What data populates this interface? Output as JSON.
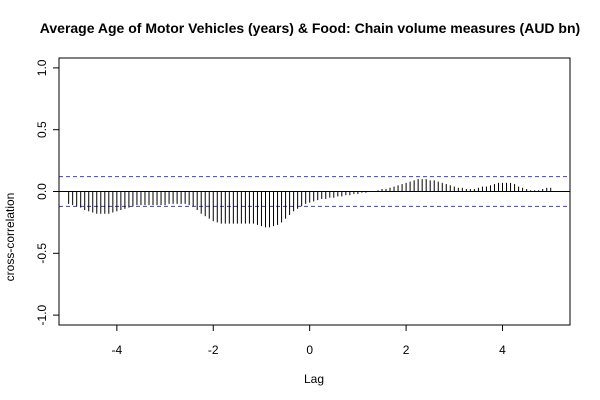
{
  "chart_data": {
    "type": "bar",
    "title": "Average Age of Motor Vehicles (years) & Food: Chain volume measures (AUD bn)",
    "xlabel": "Lag",
    "ylabel": "cross-correlation",
    "xlim": [
      -5.2,
      5.4
    ],
    "ylim": [
      -1.08,
      1.08
    ],
    "x_ticks": [
      -4,
      -2,
      0,
      2,
      4
    ],
    "x_tick_labels": [
      "-4",
      "-2",
      "0",
      "2",
      "4"
    ],
    "y_ticks": [
      -1.0,
      -0.5,
      0.0,
      0.5,
      1.0
    ],
    "y_tick_labels": [
      "-1.0",
      "-0.5",
      "0.0",
      "0.5",
      "1.0"
    ],
    "confidence_bound": 0.12,
    "confidence_color": "#4040d0",
    "bar_color": "#000000",
    "lag_step": 0.0833,
    "lags": [
      -5.0,
      -4.9167,
      -4.8333,
      -4.75,
      -4.6667,
      -4.5833,
      -4.5,
      -4.4167,
      -4.3333,
      -4.25,
      -4.1667,
      -4.0833,
      -4.0,
      -3.9167,
      -3.8333,
      -3.75,
      -3.6667,
      -3.5833,
      -3.5,
      -3.4167,
      -3.3333,
      -3.25,
      -3.1667,
      -3.0833,
      -3.0,
      -2.9167,
      -2.8333,
      -2.75,
      -2.6667,
      -2.5833,
      -2.5,
      -2.4167,
      -2.3333,
      -2.25,
      -2.1667,
      -2.0833,
      -2.0,
      -1.9167,
      -1.8333,
      -1.75,
      -1.6667,
      -1.5833,
      -1.5,
      -1.4167,
      -1.3333,
      -1.25,
      -1.1667,
      -1.0833,
      -1.0,
      -0.9167,
      -0.8333,
      -0.75,
      -0.6667,
      -0.5833,
      -0.5,
      -0.4167,
      -0.3333,
      -0.25,
      -0.1667,
      -0.0833,
      0.0,
      0.0833,
      0.1667,
      0.25,
      0.3333,
      0.4167,
      0.5,
      0.5833,
      0.6667,
      0.75,
      0.8333,
      0.9167,
      1.0,
      1.0833,
      1.1667,
      1.25,
      1.3333,
      1.4167,
      1.5,
      1.5833,
      1.6667,
      1.75,
      1.8333,
      1.9167,
      2.0,
      2.0833,
      2.1667,
      2.25,
      2.3333,
      2.4167,
      2.5,
      2.5833,
      2.6667,
      2.75,
      2.8333,
      2.9167,
      3.0,
      3.0833,
      3.1667,
      3.25,
      3.3333,
      3.4167,
      3.5,
      3.5833,
      3.6667,
      3.75,
      3.8333,
      3.9167,
      4.0,
      4.0833,
      4.1667,
      4.25,
      4.3333,
      4.4167,
      4.5,
      4.5833,
      4.6667,
      4.75,
      4.8333,
      4.9167,
      5.0
    ],
    "values": [
      -0.1,
      -0.11,
      -0.12,
      -0.13,
      -0.15,
      -0.16,
      -0.17,
      -0.18,
      -0.18,
      -0.18,
      -0.18,
      -0.17,
      -0.16,
      -0.15,
      -0.14,
      -0.13,
      -0.12,
      -0.11,
      -0.11,
      -0.11,
      -0.11,
      -0.11,
      -0.11,
      -0.11,
      -0.11,
      -0.1,
      -0.1,
      -0.1,
      -0.1,
      -0.1,
      -0.11,
      -0.12,
      -0.15,
      -0.18,
      -0.2,
      -0.22,
      -0.24,
      -0.25,
      -0.26,
      -0.26,
      -0.26,
      -0.26,
      -0.26,
      -0.26,
      -0.26,
      -0.26,
      -0.26,
      -0.27,
      -0.28,
      -0.29,
      -0.29,
      -0.28,
      -0.27,
      -0.25,
      -0.22,
      -0.19,
      -0.16,
      -0.14,
      -0.12,
      -0.1,
      -0.09,
      -0.08,
      -0.07,
      -0.06,
      -0.06,
      -0.05,
      -0.05,
      -0.04,
      -0.04,
      -0.03,
      -0.03,
      -0.02,
      -0.02,
      -0.01,
      -0.01,
      0.0,
      0.0,
      0.01,
      0.02,
      0.02,
      0.03,
      0.04,
      0.05,
      0.06,
      0.07,
      0.08,
      0.09,
      0.1,
      0.1,
      0.1,
      0.09,
      0.09,
      0.08,
      0.07,
      0.06,
      0.05,
      0.04,
      0.03,
      0.03,
      0.02,
      0.02,
      0.02,
      0.03,
      0.04,
      0.04,
      0.05,
      0.06,
      0.07,
      0.07,
      0.07,
      0.07,
      0.06,
      0.04,
      0.03,
      0.02,
      0.01,
      0.01,
      0.01,
      0.02,
      0.03,
      0.03
    ]
  }
}
